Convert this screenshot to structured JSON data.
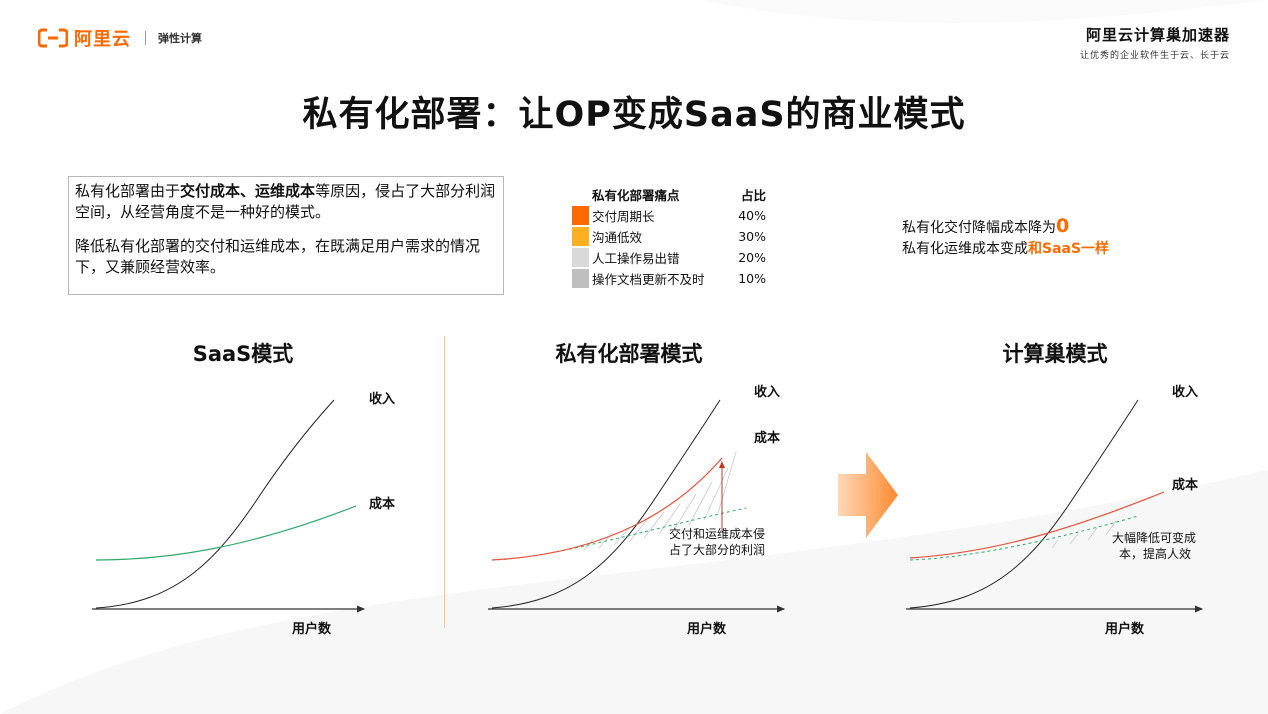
{
  "header": {
    "logo_text": "阿里云",
    "logo_sub": "弹性计算",
    "brand_title": "阿里云计算巢加速器",
    "brand_sub": "让优秀的企业软件生于云、长于云"
  },
  "title": "私有化部署：让OP变成SaaS的商业模式",
  "intro": {
    "p1_pre": "私有化部署由于",
    "p1_b1": "交付成本",
    "p1_sep": "、",
    "p1_b2": "运维成本",
    "p1_post": "等原因，侵占了大部分利润空间，从经营角度不是一种好的模式。",
    "p2": "降低私有化部署的交付和运维成本，在既满足用户需求的情况下，又兼顾经营效率。"
  },
  "pain_table": {
    "header_label": "私有化部署痛点",
    "header_pct": "占比",
    "rows": [
      {
        "label": "交付周期长",
        "pct": "40%",
        "color": "#ff6a00"
      },
      {
        "label": "沟通低效",
        "pct": "30%",
        "color": "#ffb020"
      },
      {
        "label": "人工操作易出错",
        "pct": "20%",
        "color": "#d9d9d9"
      },
      {
        "label": "操作文档更新不及时",
        "pct": "10%",
        "color": "#bfbfbf"
      }
    ]
  },
  "notes": {
    "line1_pre": "私有化交付降幅成本降为",
    "line1_hl": "0",
    "line2_pre": "私有化运维成本变成",
    "line2_hl": "和SaaS一样"
  },
  "panels": {
    "saas": {
      "title": "SaaS模式",
      "revenue": "收入",
      "cost": "成本",
      "xlabel": "用户数"
    },
    "private": {
      "title": "私有化部署模式",
      "revenue": "收入",
      "cost": "成本",
      "xlabel": "用户数",
      "annotation_l1": "交付和运维成本侵",
      "annotation_l2": "占了大部分的利润"
    },
    "compute": {
      "title": "计算巢模式",
      "revenue": "收入",
      "cost": "成本",
      "xlabel": "用户数",
      "annotation_l1": "大幅降低可变成",
      "annotation_l2": "本，提高人效"
    }
  },
  "colors": {
    "accent": "#ff6a00",
    "cost_green": "#2daa6a",
    "cost_red": "#e8503a"
  }
}
